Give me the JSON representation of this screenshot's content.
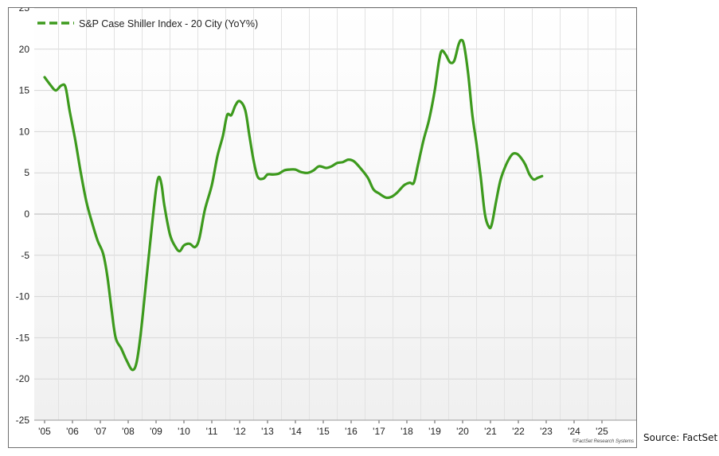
{
  "chart_data": {
    "type": "line",
    "title": "",
    "xlabel": "",
    "ylabel": "",
    "ylim": [
      -25,
      25
    ],
    "yticks": [
      -25,
      -20,
      -15,
      -10,
      -5,
      0,
      5,
      10,
      15,
      20,
      25
    ],
    "xticks": [
      "'05",
      "'06",
      "'07",
      "'08",
      "'09",
      "'10",
      "'11",
      "'12",
      "'13",
      "'14",
      "'15",
      "'16",
      "'17",
      "'18",
      "'19",
      "'20",
      "'21",
      "'22",
      "'23",
      "'24",
      "'25"
    ],
    "xtick_years": [
      2005,
      2006,
      2007,
      2008,
      2009,
      2010,
      2011,
      2012,
      2013,
      2014,
      2015,
      2016,
      2017,
      2018,
      2019,
      2020,
      2021,
      2022,
      2023,
      2024,
      2025
    ],
    "x_start": "2005-01",
    "grid": true,
    "legend": "top-left",
    "series": [
      {
        "name": "S&P Case Shiller Index - 20 City (YoY%)",
        "color": "#3d9a1d",
        "points": [
          [
            2005.0,
            16.6
          ],
          [
            2005.2,
            15.7
          ],
          [
            2005.4,
            15.0
          ],
          [
            2005.6,
            15.6
          ],
          [
            2005.75,
            15.4
          ],
          [
            2005.9,
            12.5
          ],
          [
            2006.1,
            9.0
          ],
          [
            2006.3,
            5.0
          ],
          [
            2006.5,
            1.5
          ],
          [
            2006.7,
            -1.0
          ],
          [
            2006.9,
            -3.2
          ],
          [
            2007.1,
            -4.8
          ],
          [
            2007.25,
            -7.5
          ],
          [
            2007.4,
            -11.5
          ],
          [
            2007.55,
            -15.0
          ],
          [
            2007.75,
            -16.3
          ],
          [
            2007.95,
            -17.8
          ],
          [
            2008.15,
            -18.9
          ],
          [
            2008.3,
            -18.0
          ],
          [
            2008.45,
            -14.5
          ],
          [
            2008.65,
            -8.0
          ],
          [
            2008.85,
            -1.5
          ],
          [
            2009.0,
            3.0
          ],
          [
            2009.1,
            4.5
          ],
          [
            2009.2,
            3.5
          ],
          [
            2009.3,
            1.0
          ],
          [
            2009.5,
            -2.5
          ],
          [
            2009.7,
            -4.0
          ],
          [
            2009.85,
            -4.5
          ],
          [
            2010.0,
            -3.8
          ],
          [
            2010.2,
            -3.6
          ],
          [
            2010.4,
            -4.0
          ],
          [
            2010.55,
            -3.0
          ],
          [
            2010.75,
            0.5
          ],
          [
            2011.0,
            3.5
          ],
          [
            2011.2,
            7.0
          ],
          [
            2011.4,
            9.5
          ],
          [
            2011.55,
            12.0
          ],
          [
            2011.7,
            12.0
          ],
          [
            2011.85,
            13.2
          ],
          [
            2012.0,
            13.7
          ],
          [
            2012.2,
            12.6
          ],
          [
            2012.35,
            9.5
          ],
          [
            2012.5,
            6.5
          ],
          [
            2012.65,
            4.5
          ],
          [
            2012.85,
            4.3
          ],
          [
            2013.0,
            4.8
          ],
          [
            2013.2,
            4.8
          ],
          [
            2013.4,
            4.9
          ],
          [
            2013.6,
            5.3
          ],
          [
            2013.8,
            5.4
          ],
          [
            2014.0,
            5.4
          ],
          [
            2014.2,
            5.1
          ],
          [
            2014.45,
            5.0
          ],
          [
            2014.65,
            5.3
          ],
          [
            2014.85,
            5.8
          ],
          [
            2015.1,
            5.6
          ],
          [
            2015.3,
            5.8
          ],
          [
            2015.5,
            6.2
          ],
          [
            2015.7,
            6.3
          ],
          [
            2015.9,
            6.6
          ],
          [
            2016.1,
            6.4
          ],
          [
            2016.35,
            5.5
          ],
          [
            2016.6,
            4.4
          ],
          [
            2016.8,
            3.0
          ],
          [
            2017.0,
            2.5
          ],
          [
            2017.25,
            2.0
          ],
          [
            2017.45,
            2.1
          ],
          [
            2017.65,
            2.6
          ],
          [
            2017.9,
            3.5
          ],
          [
            2018.1,
            3.8
          ],
          [
            2018.25,
            3.8
          ],
          [
            2018.4,
            6.0
          ],
          [
            2018.6,
            9.0
          ],
          [
            2018.8,
            11.5
          ],
          [
            2019.0,
            15.0
          ],
          [
            2019.15,
            18.5
          ],
          [
            2019.25,
            19.8
          ],
          [
            2019.4,
            19.3
          ],
          [
            2019.55,
            18.4
          ],
          [
            2019.7,
            18.6
          ],
          [
            2019.85,
            20.5
          ],
          [
            2019.95,
            21.1
          ],
          [
            2020.05,
            20.5
          ],
          [
            2020.2,
            17.0
          ],
          [
            2020.35,
            12.0
          ],
          [
            2020.5,
            8.5
          ],
          [
            2020.65,
            4.5
          ],
          [
            2020.8,
            0.0
          ],
          [
            2020.95,
            -1.6
          ],
          [
            2021.05,
            -1.2
          ],
          [
            2021.2,
            1.5
          ],
          [
            2021.35,
            4.0
          ],
          [
            2021.5,
            5.5
          ],
          [
            2021.65,
            6.6
          ],
          [
            2021.8,
            7.3
          ],
          [
            2021.95,
            7.3
          ],
          [
            2022.1,
            6.8
          ],
          [
            2022.25,
            6.0
          ],
          [
            2022.4,
            4.8
          ],
          [
            2022.55,
            4.2
          ],
          [
            2022.7,
            4.4
          ],
          [
            2022.85,
            4.6
          ]
        ]
      }
    ]
  },
  "watermark": "©FactSet Research Systems",
  "source_note": "Source: FactSet"
}
